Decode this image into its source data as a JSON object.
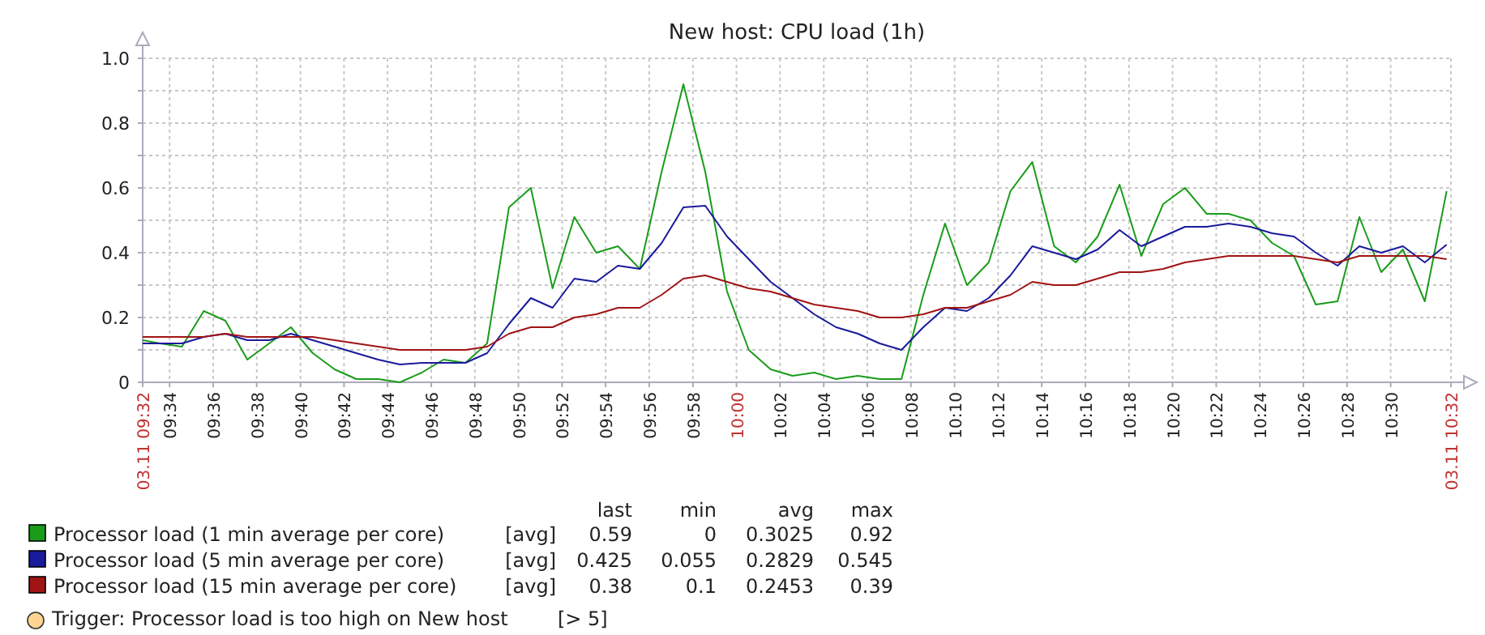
{
  "chart_data": {
    "type": "line",
    "title": "New host: CPU load (1h)",
    "x": [
      9.5461,
      9.5594,
      9.5761,
      9.5928,
      9.6094,
      9.6261,
      9.6428,
      9.6594,
      9.6761,
      9.6928,
      9.7094,
      9.7261,
      9.7428,
      9.7594,
      9.7761,
      9.7928,
      9.8094,
      9.8261,
      9.8428,
      9.8594,
      9.8761,
      9.8928,
      9.9094,
      9.9261,
      9.9428,
      9.9594,
      9.9761,
      9.9928,
      10.0094,
      10.0261,
      10.0428,
      10.0594,
      10.0761,
      10.0928,
      10.1094,
      10.1261,
      10.1428,
      10.1594,
      10.1761,
      10.1928,
      10.2094,
      10.2261,
      10.2428,
      10.2594,
      10.2761,
      10.2928,
      10.3094,
      10.3261,
      10.3428,
      10.3594,
      10.3761,
      10.3928,
      10.4094,
      10.4261,
      10.4428,
      10.4594,
      10.4761,
      10.4928,
      10.5094,
      10.5261,
      10.5428
    ],
    "series": [
      {
        "name": "Processor load (1 min average per core)",
        "color": "#1a9c1a",
        "values": [
          0.13,
          0.12,
          0.11,
          0.22,
          0.19,
          0.07,
          0.12,
          0.17,
          0.09,
          0.04,
          0.01,
          0.01,
          0,
          0.03,
          0.07,
          0.06,
          0.12,
          0.54,
          0.6,
          0.29,
          0.51,
          0.4,
          0.42,
          0.35,
          0.65,
          0.92,
          0.65,
          0.28,
          0.1,
          0.04,
          0.02,
          0.03,
          0.01,
          0.02,
          0.01,
          0.01,
          0.27,
          0.49,
          0.3,
          0.37,
          0.59,
          0.68,
          0.42,
          0.37,
          0.45,
          0.61,
          0.39,
          0.55,
          0.6,
          0.52,
          0.52,
          0.5,
          0.43,
          0.39,
          0.24,
          0.25,
          0.51,
          0.34,
          0.41,
          0.25,
          0.59
        ]
      },
      {
        "name": "Processor load (5 min average per core)",
        "color": "#1a1a9c",
        "values": [
          0.12,
          0.12,
          0.12,
          0.14,
          0.15,
          0.13,
          0.13,
          0.15,
          0.13,
          0.11,
          0.09,
          0.07,
          0.055,
          0.06,
          0.06,
          0.06,
          0.09,
          0.18,
          0.26,
          0.23,
          0.32,
          0.31,
          0.36,
          0.35,
          0.43,
          0.54,
          0.545,
          0.45,
          0.38,
          0.31,
          0.26,
          0.21,
          0.17,
          0.15,
          0.12,
          0.1,
          0.17,
          0.23,
          0.22,
          0.26,
          0.33,
          0.42,
          0.4,
          0.38,
          0.41,
          0.47,
          0.42,
          0.45,
          0.48,
          0.48,
          0.49,
          0.48,
          0.46,
          0.45,
          0.4,
          0.36,
          0.42,
          0.4,
          0.42,
          0.37,
          0.425
        ]
      },
      {
        "name": "Processor load (15 min average per core)",
        "color": "#a01414",
        "values": [
          0.14,
          0.14,
          0.14,
          0.14,
          0.15,
          0.14,
          0.14,
          0.14,
          0.14,
          0.13,
          0.12,
          0.11,
          0.1,
          0.1,
          0.1,
          0.1,
          0.11,
          0.15,
          0.17,
          0.17,
          0.2,
          0.21,
          0.23,
          0.23,
          0.27,
          0.32,
          0.33,
          0.31,
          0.29,
          0.28,
          0.26,
          0.24,
          0.23,
          0.22,
          0.2,
          0.2,
          0.21,
          0.23,
          0.23,
          0.25,
          0.27,
          0.31,
          0.3,
          0.3,
          0.32,
          0.34,
          0.34,
          0.35,
          0.37,
          0.38,
          0.39,
          0.39,
          0.39,
          0.39,
          0.38,
          0.37,
          0.39,
          0.39,
          0.39,
          0.39,
          0.38
        ]
      }
    ],
    "xlim": [
      9.5461,
      10.5461
    ],
    "xticks": [
      {
        "value": 9.5461,
        "label": "03.11 09:32"
      },
      {
        "value": 9.5667,
        "label": "09:34"
      },
      {
        "value": 9.6,
        "label": "09:36"
      },
      {
        "value": 9.6333,
        "label": "09:38"
      },
      {
        "value": 9.6667,
        "label": "09:40"
      },
      {
        "value": 9.7,
        "label": "09:42"
      },
      {
        "value": 9.7333,
        "label": "09:44"
      },
      {
        "value": 9.7667,
        "label": "09:46"
      },
      {
        "value": 9.8,
        "label": "09:48"
      },
      {
        "value": 9.8333,
        "label": "09:50"
      },
      {
        "value": 9.8667,
        "label": "09:52"
      },
      {
        "value": 9.9,
        "label": "09:54"
      },
      {
        "value": 9.9333,
        "label": "09:56"
      },
      {
        "value": 9.9667,
        "label": "09:58"
      },
      {
        "value": 10,
        "label": "10:00"
      },
      {
        "value": 10.0333,
        "label": "10:02"
      },
      {
        "value": 10.0667,
        "label": "10:04"
      },
      {
        "value": 10.1,
        "label": "10:06"
      },
      {
        "value": 10.1333,
        "label": "10:08"
      },
      {
        "value": 10.1667,
        "label": "10:10"
      },
      {
        "value": 10.2,
        "label": "10:12"
      },
      {
        "value": 10.2333,
        "label": "10:14"
      },
      {
        "value": 10.2667,
        "label": "10:16"
      },
      {
        "value": 10.3,
        "label": "10:18"
      },
      {
        "value": 10.3333,
        "label": "10:20"
      },
      {
        "value": 10.3667,
        "label": "10:22"
      },
      {
        "value": 10.4,
        "label": "10:24"
      },
      {
        "value": 10.4333,
        "label": "10:26"
      },
      {
        "value": 10.4667,
        "label": "10:28"
      },
      {
        "value": 10.5,
        "label": "10:30"
      },
      {
        "value": 10.5461,
        "label": "03.11 10:32"
      }
    ],
    "ylim": [
      0,
      1
    ],
    "yticks": [
      0,
      {
        "value": 0.1,
        "label": null
      },
      0.2,
      {
        "value": 0.3,
        "label": null
      },
      0.4,
      {
        "value": 0.5,
        "label": null
      },
      0.6,
      {
        "value": 0.7,
        "label": null
      },
      0.8,
      {
        "value": 0.9,
        "label": null
      },
      {
        "value": 1,
        "label": "1.0"
      }
    ],
    "grid": true,
    "legend": "bottom",
    "annotations": [
      "last",
      "min",
      "avg",
      "max",
      "[avg]",
      "0.59",
      "0",
      "0.3025",
      "0.92",
      "[avg]",
      "0.425",
      "0.055",
      "0.2829",
      "0.545",
      "[avg]",
      "0.38",
      "0.1",
      "0.2453",
      "0.39",
      "Trigger: Processor load is too high on New host",
      "[> 5]"
    ]
  }
}
